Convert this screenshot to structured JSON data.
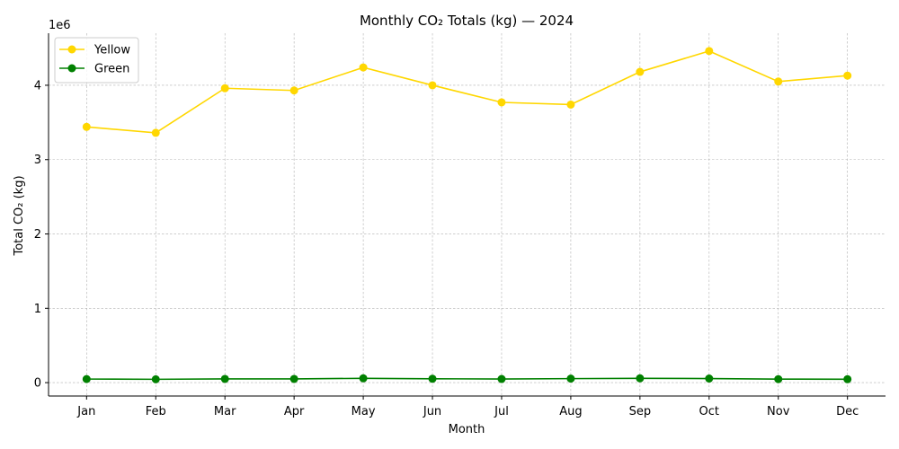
{
  "chart_data": {
    "type": "line",
    "title": "Monthly CO₂ Totals (kg) — 2024",
    "xlabel": "Month",
    "ylabel": "Total CO₂ (kg)",
    "y_offset_text": "1e6",
    "categories": [
      "Jan",
      "Feb",
      "Mar",
      "Apr",
      "May",
      "Jun",
      "Jul",
      "Aug",
      "Sep",
      "Oct",
      "Nov",
      "Dec"
    ],
    "yticks": [
      0,
      1000000,
      2000000,
      3000000,
      4000000
    ],
    "ytick_labels": [
      "0",
      "1",
      "2",
      "3",
      "4"
    ],
    "ylim": [
      -180000,
      4700000
    ],
    "grid": true,
    "legend_position": "top-left",
    "series": [
      {
        "name": "Yellow",
        "color": "#FFD700",
        "marker": "circle",
        "values": [
          3440000,
          3360000,
          3960000,
          3930000,
          4240000,
          4000000,
          3770000,
          3740000,
          4180000,
          4460000,
          4050000,
          4130000
        ]
      },
      {
        "name": "Green",
        "color": "#008000",
        "marker": "circle",
        "values": [
          48000,
          45000,
          50000,
          50000,
          58000,
          52000,
          49000,
          54000,
          58000,
          55000,
          47000,
          46000
        ]
      }
    ]
  }
}
